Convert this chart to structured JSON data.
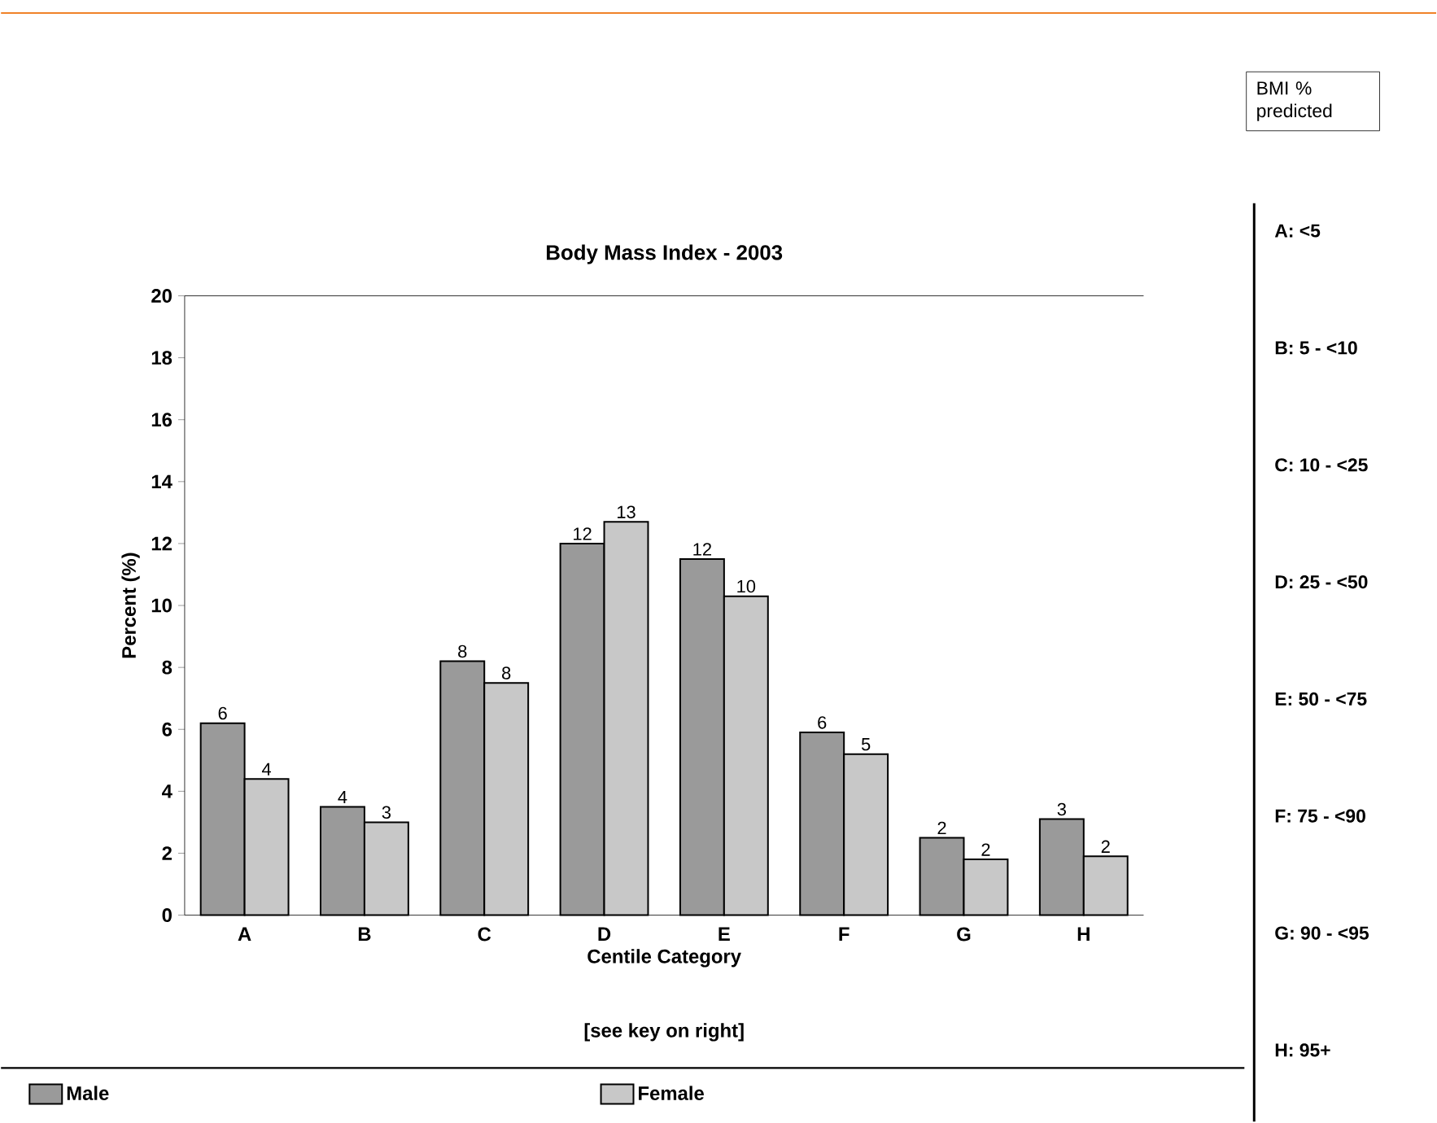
{
  "chart_data": {
    "type": "bar",
    "title": "Body Mass Index - 2003",
    "xlabel": "Centile Category",
    "ylabel": "Percent (%)",
    "categories": [
      "A",
      "B",
      "C",
      "D",
      "E",
      "F",
      "G",
      "H"
    ],
    "series": [
      {
        "name": "Male",
        "color": "#9a9a9a",
        "values": [
          6.2,
          3.5,
          8.2,
          12.0,
          11.5,
          5.9,
          2.5,
          3.1
        ],
        "value_labels": [
          "6",
          "4",
          "8",
          "12",
          "12",
          "6",
          "2",
          "3"
        ]
      },
      {
        "name": "Female",
        "color": "#c8c8c8",
        "values": [
          4.4,
          3.0,
          7.5,
          12.7,
          10.3,
          5.2,
          1.8,
          1.9
        ],
        "value_labels": [
          "4",
          "3",
          "8",
          "13",
          "10",
          "5",
          "2",
          "2"
        ]
      }
    ],
    "ylim": [
      0,
      20
    ],
    "yticks": [
      0,
      2,
      4,
      6,
      8,
      10,
      12,
      14,
      16,
      18,
      20
    ],
    "legend": "bottom",
    "annotations": [
      "[see key on right]",
      "BMI % predicted",
      "A:  <5",
      "B:  5 - <10",
      "C:  10 - <25",
      "D:  25 - <50",
      "E:  50 - <75",
      "F:  75 - <90",
      "G:  90 - <95",
      "H:  95+"
    ]
  }
}
